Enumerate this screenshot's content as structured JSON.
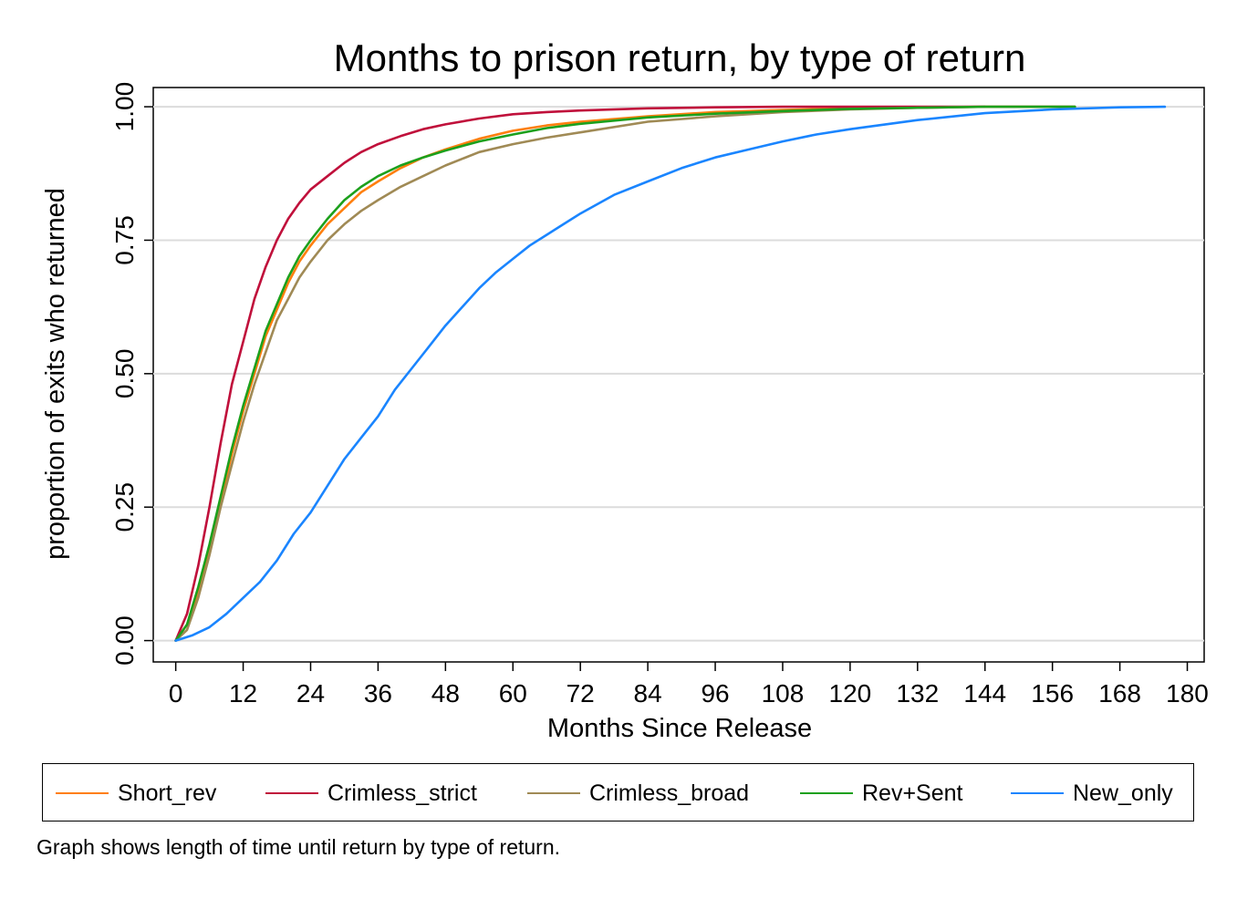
{
  "chart_data": {
    "type": "line",
    "title": "Months to prison return, by type of return",
    "xlabel": "Months Since Release",
    "ylabel": "proportion of exits who returned",
    "xlim": [
      -4,
      183
    ],
    "ylim": [
      -0.04,
      1.036
    ],
    "x_ticks": [
      "0",
      "12",
      "24",
      "36",
      "48",
      "60",
      "72",
      "84",
      "96",
      "108",
      "120",
      "132",
      "144",
      "156",
      "168",
      "180"
    ],
    "y_ticks": [
      "0.00",
      "0.25",
      "0.50",
      "0.75",
      "1.00"
    ],
    "grid": "horizontal",
    "legend_position": "bottom",
    "note": "Graph shows length of time until return by type of return.",
    "series": [
      {
        "name": "Short_rev",
        "color": "#ff7f0e",
        "x": [
          0,
          2,
          4,
          6,
          8,
          10,
          12,
          14,
          16,
          18,
          20,
          22,
          24,
          27,
          30,
          33,
          36,
          40,
          44,
          48,
          54,
          60,
          66,
          72,
          84,
          96,
          108,
          120,
          132,
          144,
          160
        ],
        "y": [
          0,
          0.03,
          0.09,
          0.17,
          0.26,
          0.35,
          0.43,
          0.5,
          0.57,
          0.62,
          0.67,
          0.71,
          0.74,
          0.78,
          0.81,
          0.84,
          0.86,
          0.885,
          0.905,
          0.92,
          0.94,
          0.955,
          0.965,
          0.972,
          0.982,
          0.99,
          0.994,
          0.997,
          0.999,
          1.0,
          1.0
        ]
      },
      {
        "name": "Crimless_strict",
        "color": "#c0103b",
        "x": [
          0,
          2,
          4,
          6,
          8,
          10,
          12,
          14,
          16,
          18,
          20,
          22,
          24,
          27,
          30,
          33,
          36,
          40,
          44,
          48,
          54,
          60,
          66,
          72,
          84,
          96,
          108,
          120,
          132,
          144
        ],
        "y": [
          0,
          0.05,
          0.14,
          0.25,
          0.37,
          0.48,
          0.56,
          0.64,
          0.7,
          0.75,
          0.79,
          0.82,
          0.845,
          0.87,
          0.895,
          0.915,
          0.93,
          0.945,
          0.958,
          0.967,
          0.978,
          0.986,
          0.99,
          0.993,
          0.997,
          0.999,
          1.0,
          1.0,
          1.0,
          1.0
        ]
      },
      {
        "name": "Crimless_broad",
        "color": "#a08a55",
        "x": [
          0,
          2,
          4,
          6,
          8,
          10,
          12,
          14,
          16,
          18,
          20,
          22,
          24,
          27,
          30,
          33,
          36,
          40,
          44,
          48,
          54,
          60,
          66,
          72,
          84,
          96,
          108,
          120,
          132,
          144,
          160
        ],
        "y": [
          0,
          0.02,
          0.08,
          0.16,
          0.25,
          0.33,
          0.41,
          0.48,
          0.54,
          0.6,
          0.64,
          0.68,
          0.71,
          0.75,
          0.78,
          0.805,
          0.825,
          0.85,
          0.87,
          0.89,
          0.915,
          0.93,
          0.942,
          0.952,
          0.972,
          0.982,
          0.99,
          0.995,
          0.998,
          1.0,
          1.0
        ]
      },
      {
        "name": "Rev+Sent",
        "color": "#1ca01c",
        "x": [
          0,
          2,
          4,
          6,
          8,
          10,
          12,
          14,
          16,
          18,
          20,
          22,
          24,
          27,
          30,
          33,
          36,
          40,
          44,
          48,
          54,
          60,
          66,
          72,
          84,
          96,
          108,
          120,
          132,
          144,
          160
        ],
        "y": [
          0,
          0.03,
          0.1,
          0.18,
          0.27,
          0.36,
          0.44,
          0.51,
          0.58,
          0.63,
          0.68,
          0.72,
          0.75,
          0.79,
          0.825,
          0.85,
          0.87,
          0.89,
          0.905,
          0.918,
          0.935,
          0.948,
          0.96,
          0.968,
          0.98,
          0.987,
          0.992,
          0.996,
          0.998,
          1.0,
          1.0
        ]
      },
      {
        "name": "New_only",
        "color": "#1a85ff",
        "x": [
          0,
          3,
          6,
          9,
          12,
          15,
          18,
          21,
          24,
          27,
          30,
          33,
          36,
          39,
          42,
          45,
          48,
          51,
          54,
          57,
          60,
          63,
          66,
          69,
          72,
          78,
          84,
          90,
          96,
          102,
          108,
          114,
          120,
          132,
          144,
          156,
          168,
          176
        ],
        "y": [
          0,
          0.01,
          0.025,
          0.05,
          0.08,
          0.11,
          0.15,
          0.2,
          0.24,
          0.29,
          0.34,
          0.38,
          0.42,
          0.47,
          0.51,
          0.55,
          0.59,
          0.625,
          0.66,
          0.69,
          0.715,
          0.74,
          0.76,
          0.78,
          0.8,
          0.835,
          0.86,
          0.885,
          0.905,
          0.92,
          0.935,
          0.948,
          0.958,
          0.975,
          0.988,
          0.995,
          0.999,
          1.0
        ]
      }
    ]
  }
}
